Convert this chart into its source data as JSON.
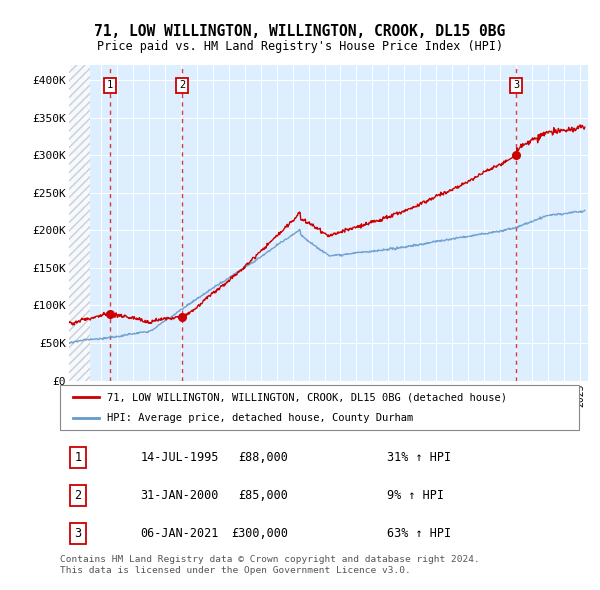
{
  "title": "71, LOW WILLINGTON, WILLINGTON, CROOK, DL15 0BG",
  "subtitle": "Price paid vs. HM Land Registry's House Price Index (HPI)",
  "ylabel_ticks": [
    "£0",
    "£50K",
    "£100K",
    "£150K",
    "£200K",
    "£250K",
    "£300K",
    "£350K",
    "£400K"
  ],
  "ytick_vals": [
    0,
    50000,
    100000,
    150000,
    200000,
    250000,
    300000,
    350000,
    400000
  ],
  "ylim": [
    0,
    420000
  ],
  "xlim_start": 1993.0,
  "xlim_end": 2025.5,
  "sales": [
    {
      "label": "1",
      "date": 1995.54,
      "price": 88000
    },
    {
      "label": "2",
      "date": 2000.08,
      "price": 85000
    },
    {
      "label": "3",
      "date": 2021.02,
      "price": 300000
    }
  ],
  "legend_line1": "71, LOW WILLINGTON, WILLINGTON, CROOK, DL15 0BG (detached house)",
  "legend_line2": "HPI: Average price, detached house, County Durham",
  "table_rows": [
    {
      "num": "1",
      "date": "14-JUL-1995",
      "price": "£88,000",
      "change": "31% ↑ HPI"
    },
    {
      "num": "2",
      "date": "31-JAN-2000",
      "price": "£85,000",
      "change": "9% ↑ HPI"
    },
    {
      "num": "3",
      "date": "06-JAN-2021",
      "price": "£300,000",
      "change": "63% ↑ HPI"
    }
  ],
  "footnote1": "Contains HM Land Registry data © Crown copyright and database right 2024.",
  "footnote2": "This data is licensed under the Open Government Licence v3.0.",
  "red_color": "#cc0000",
  "blue_color": "#6699cc",
  "bg_color": "#ddeeff",
  "hatch_end_year": 1994.3
}
